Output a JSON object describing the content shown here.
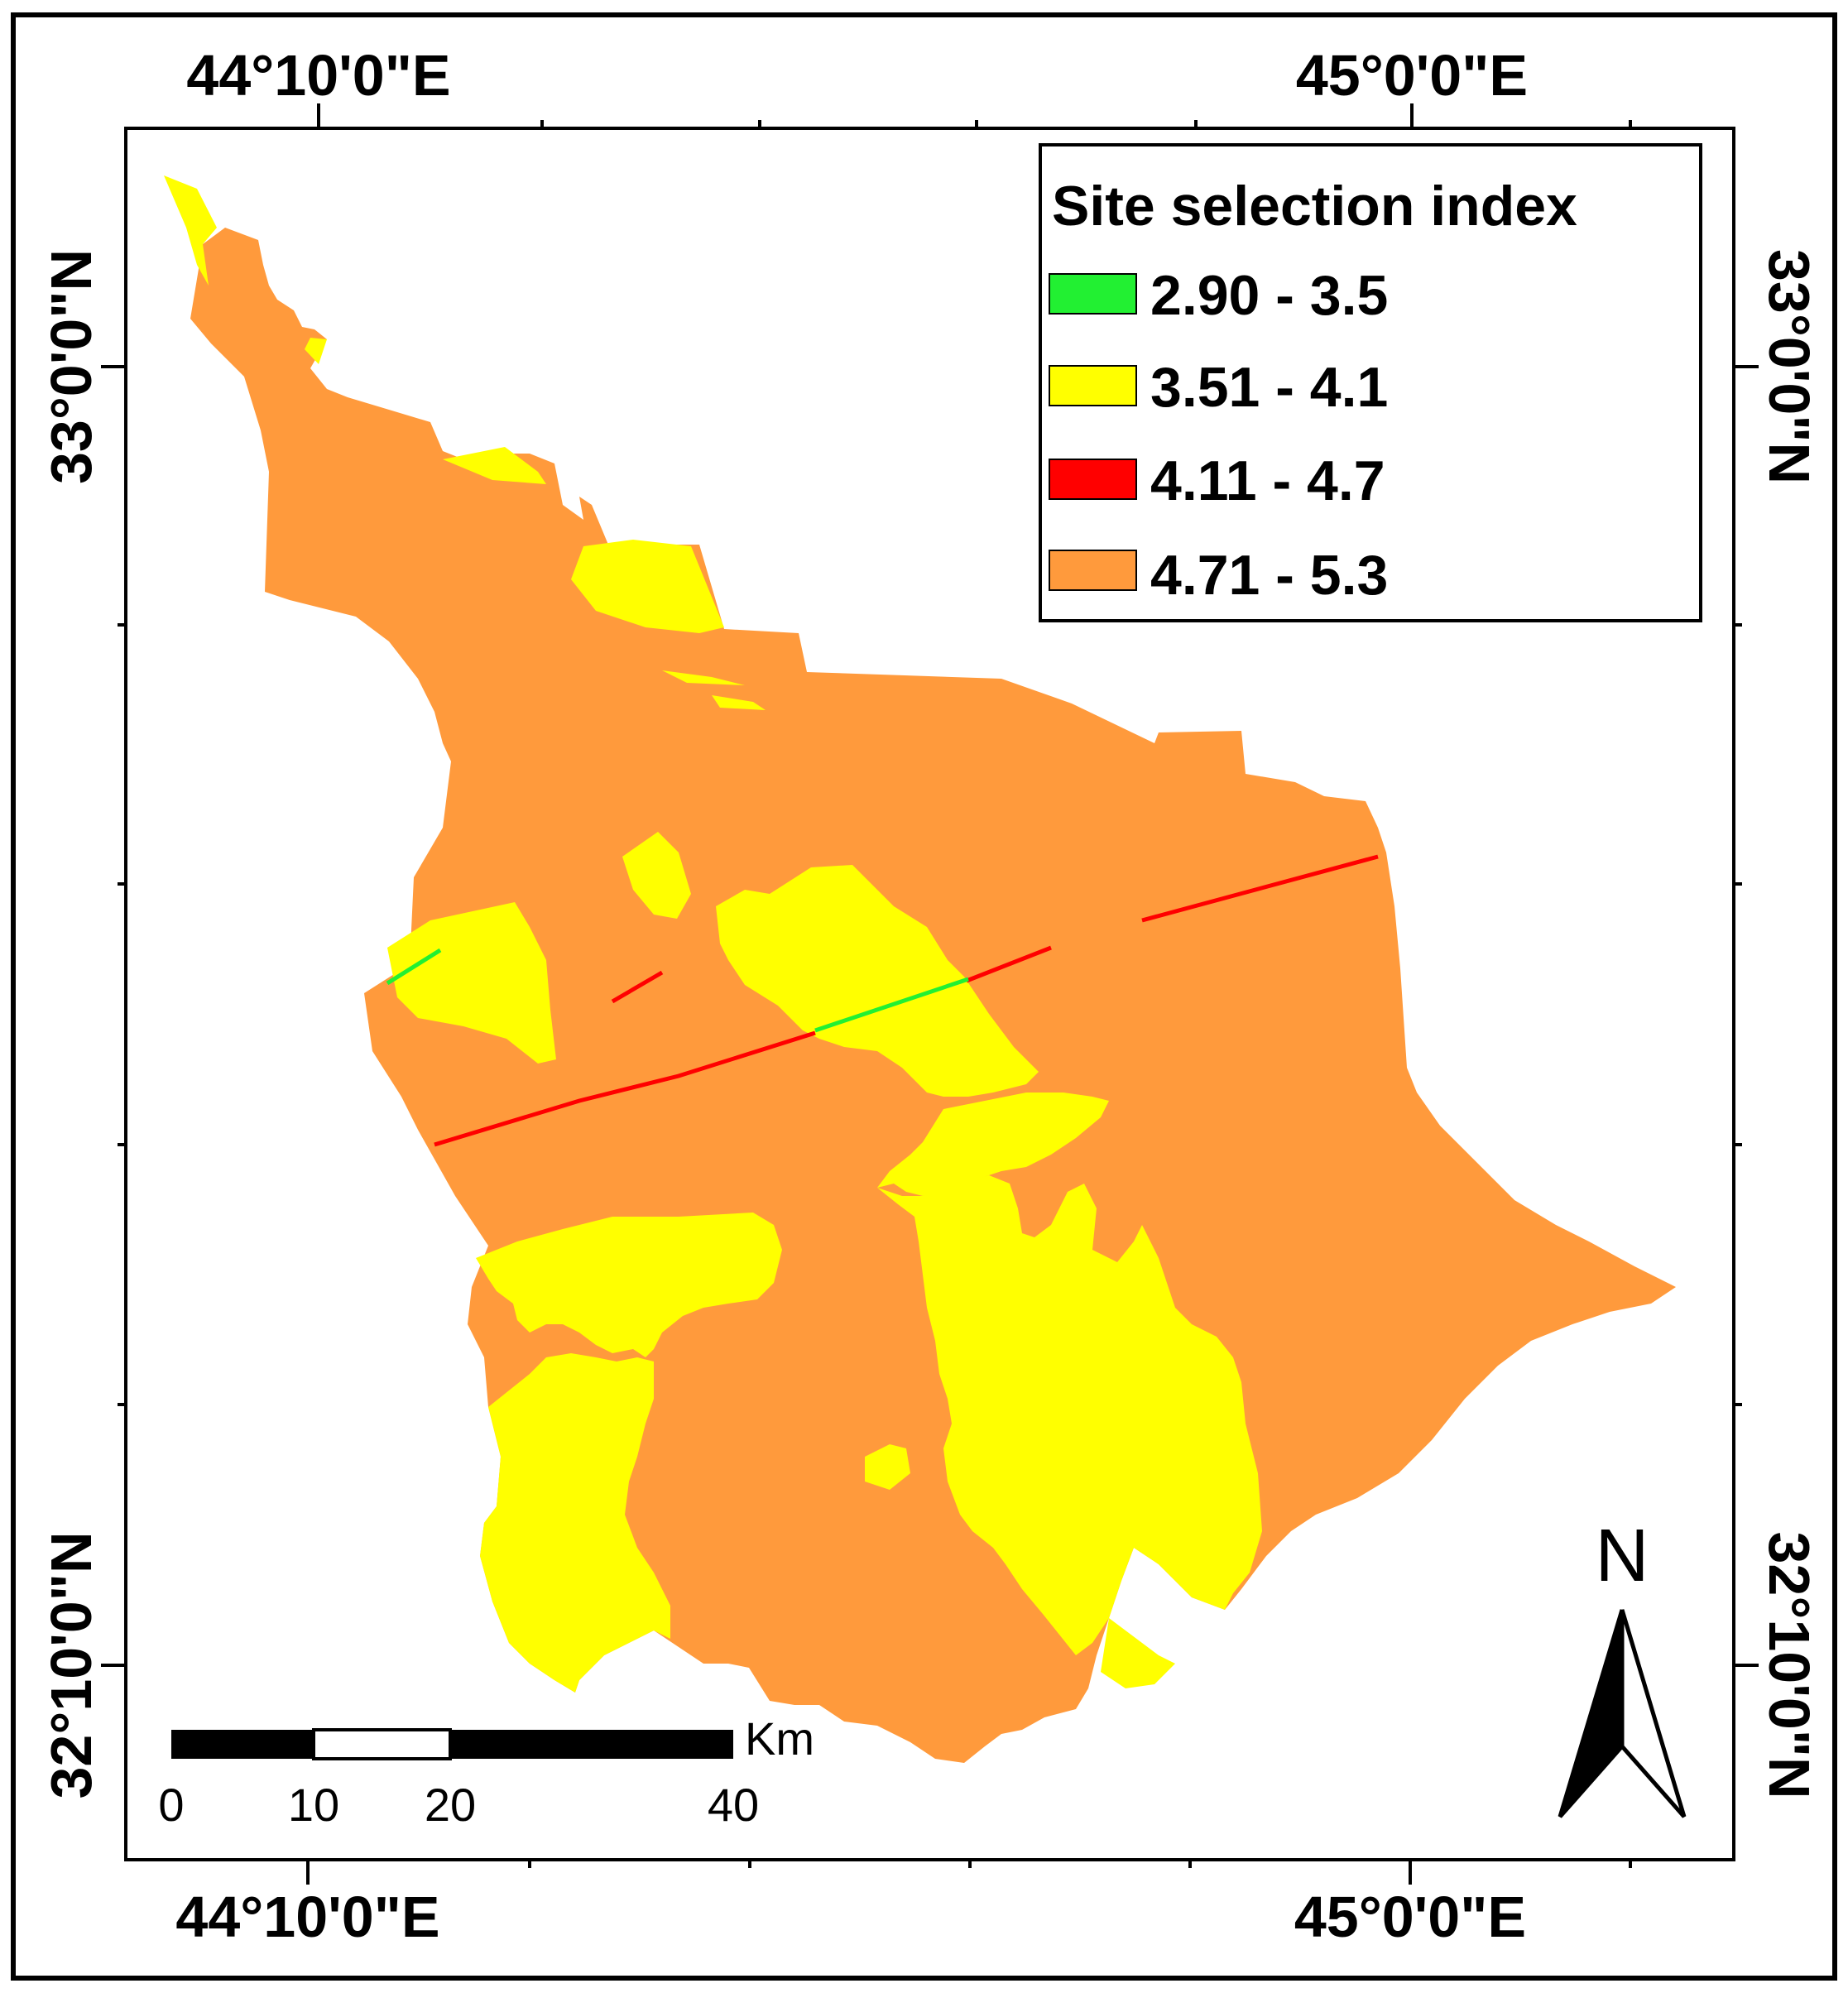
{
  "coordinates": {
    "top_left": "44°10'0\"E",
    "top_right": "45°0'0\"E",
    "bottom_left": "44°10'0\"E",
    "bottom_right": "45°0'0\"E",
    "left_top": "33°0'0\"N",
    "left_bottom": "32°10'0\"N",
    "right_top": "33°0'0\"N",
    "right_bottom": "32°10'0\"N"
  },
  "legend": {
    "title": "Site selection index",
    "items": [
      {
        "label": "2.90 - 3.5",
        "color": "#22f032"
      },
      {
        "label": "3.51 - 4.1",
        "color": "#ffff00"
      },
      {
        "label": "4.11 - 4.7",
        "color": "#ff0000"
      },
      {
        "label": "4.71 - 5.3",
        "color": "#ff9a3c"
      }
    ]
  },
  "scale_bar": {
    "unit": "Km",
    "ticks": [
      "0",
      "10",
      "20",
      "40"
    ]
  },
  "north_arrow": {
    "label": "N"
  }
}
